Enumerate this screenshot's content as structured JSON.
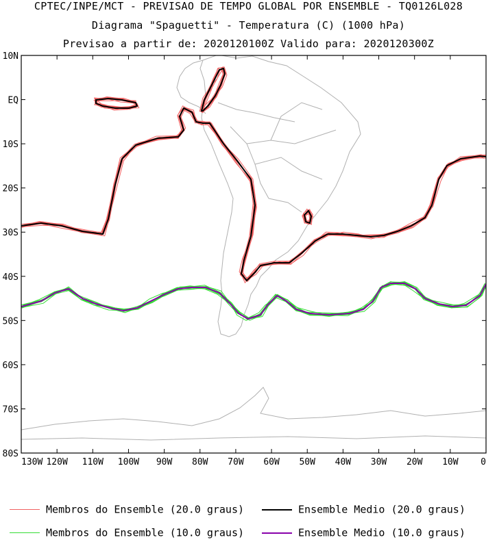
{
  "header": {
    "line1": "CPTEC/INPE/MCT - PREVISAO DE TEMPO GLOBAL POR ENSEMBLE - TQ0126L028",
    "line2": "Diagrama \"Spaguetti\" - Temperatura (C) (1000 hPa)",
    "line3": "Previsao a partir de: 2020120100Z  Valido para: 2020120300Z"
  },
  "map": {
    "lat_labels": [
      "10N",
      "EQ",
      "10S",
      "20S",
      "30S",
      "40S",
      "50S",
      "60S",
      "70S",
      "80S"
    ],
    "lon_labels": [
      "130W",
      "120W",
      "110W",
      "100W",
      "90W",
      "80W",
      "70W",
      "60W",
      "50W",
      "40W",
      "30W",
      "20W",
      "10W",
      "0"
    ],
    "colors": {
      "member_20": "#f06060",
      "mean_20": "#000000",
      "member_10": "#33dd33",
      "mean_10": "#8800aa",
      "coast": "#b0b0b0"
    }
  },
  "legend": {
    "member_20_label": "Membros do Ensemble (20.0 graus)",
    "mean_20_label": "Ensemble Medio (20.0 graus)",
    "member_10_label": "Membros do Ensemble (10.0 graus)",
    "mean_10_label": "Ensemble Medio (10.0 graus)"
  }
}
